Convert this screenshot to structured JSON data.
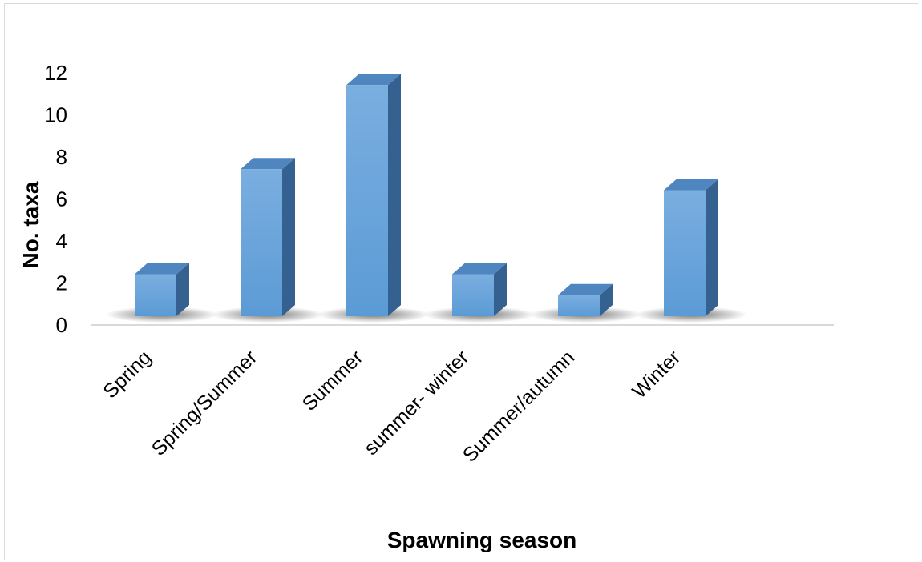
{
  "chart_data": {
    "type": "bar",
    "categories": [
      "Spring",
      "Spring/Summer",
      "Summer",
      "summer- winter",
      "Summer/autumn",
      "Winter"
    ],
    "values": [
      2,
      7,
      11,
      2,
      1,
      6
    ],
    "title": "",
    "xlabel": "Spawning season",
    "ylabel": "No. taxa",
    "ylim": [
      0,
      12
    ],
    "yticks": [
      "0",
      "2",
      "4",
      "6",
      "8",
      "10",
      "12"
    ],
    "grid": false,
    "legend": "none",
    "style": "3d-column",
    "colors": {
      "front": "#5b9bd5",
      "front_light": "#7aaee0",
      "side": "#34618f",
      "top": "#4f86c0",
      "axis": "#d9d9d9",
      "text": "#000000"
    }
  }
}
